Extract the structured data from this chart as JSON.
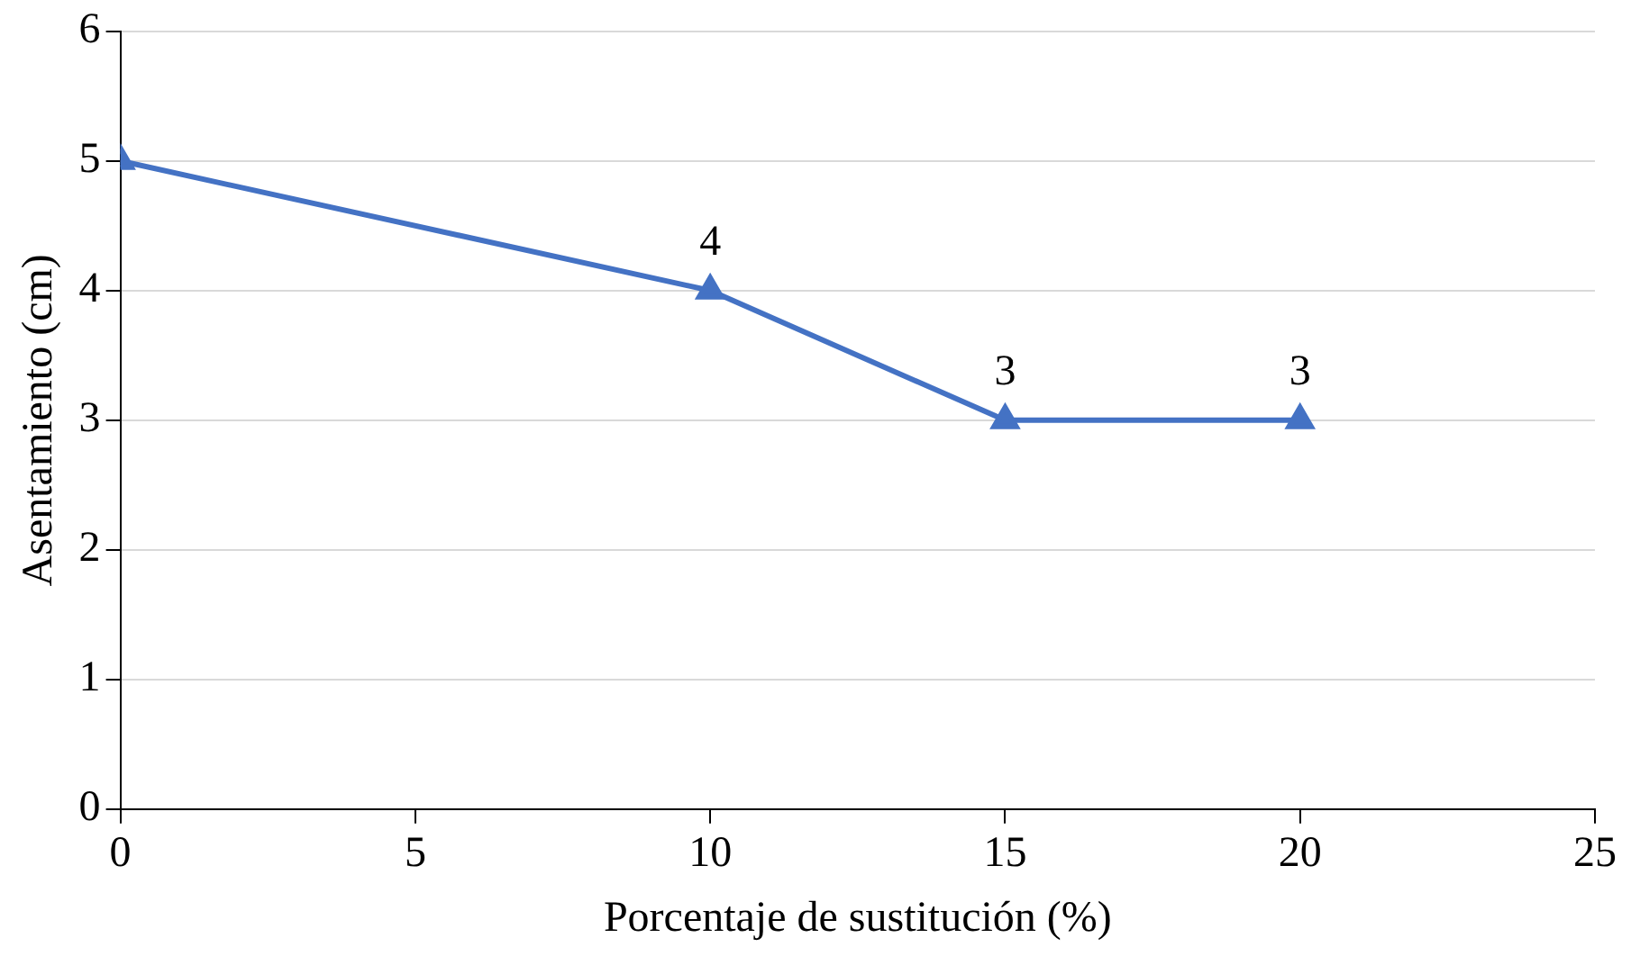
{
  "chart_data": {
    "type": "line",
    "xlabel": "Porcentaje de sustitución (%)",
    "ylabel": "Asentamiento (cm)",
    "x": [
      0,
      10,
      15,
      20
    ],
    "series": [
      {
        "color": "#4472c4",
        "values": [
          5,
          4,
          3,
          3
        ],
        "value_labels": [
          null,
          "4",
          "3",
          "3"
        ]
      }
    ],
    "xlim": [
      0,
      25
    ],
    "xticks": [
      0,
      5,
      10,
      15,
      20,
      25
    ],
    "ylim": [
      0,
      6
    ],
    "yticks": [
      0,
      1,
      2,
      3,
      4,
      5,
      6
    ],
    "grid": "y",
    "legend": false,
    "marker": "triangle",
    "line_style": "solid"
  }
}
